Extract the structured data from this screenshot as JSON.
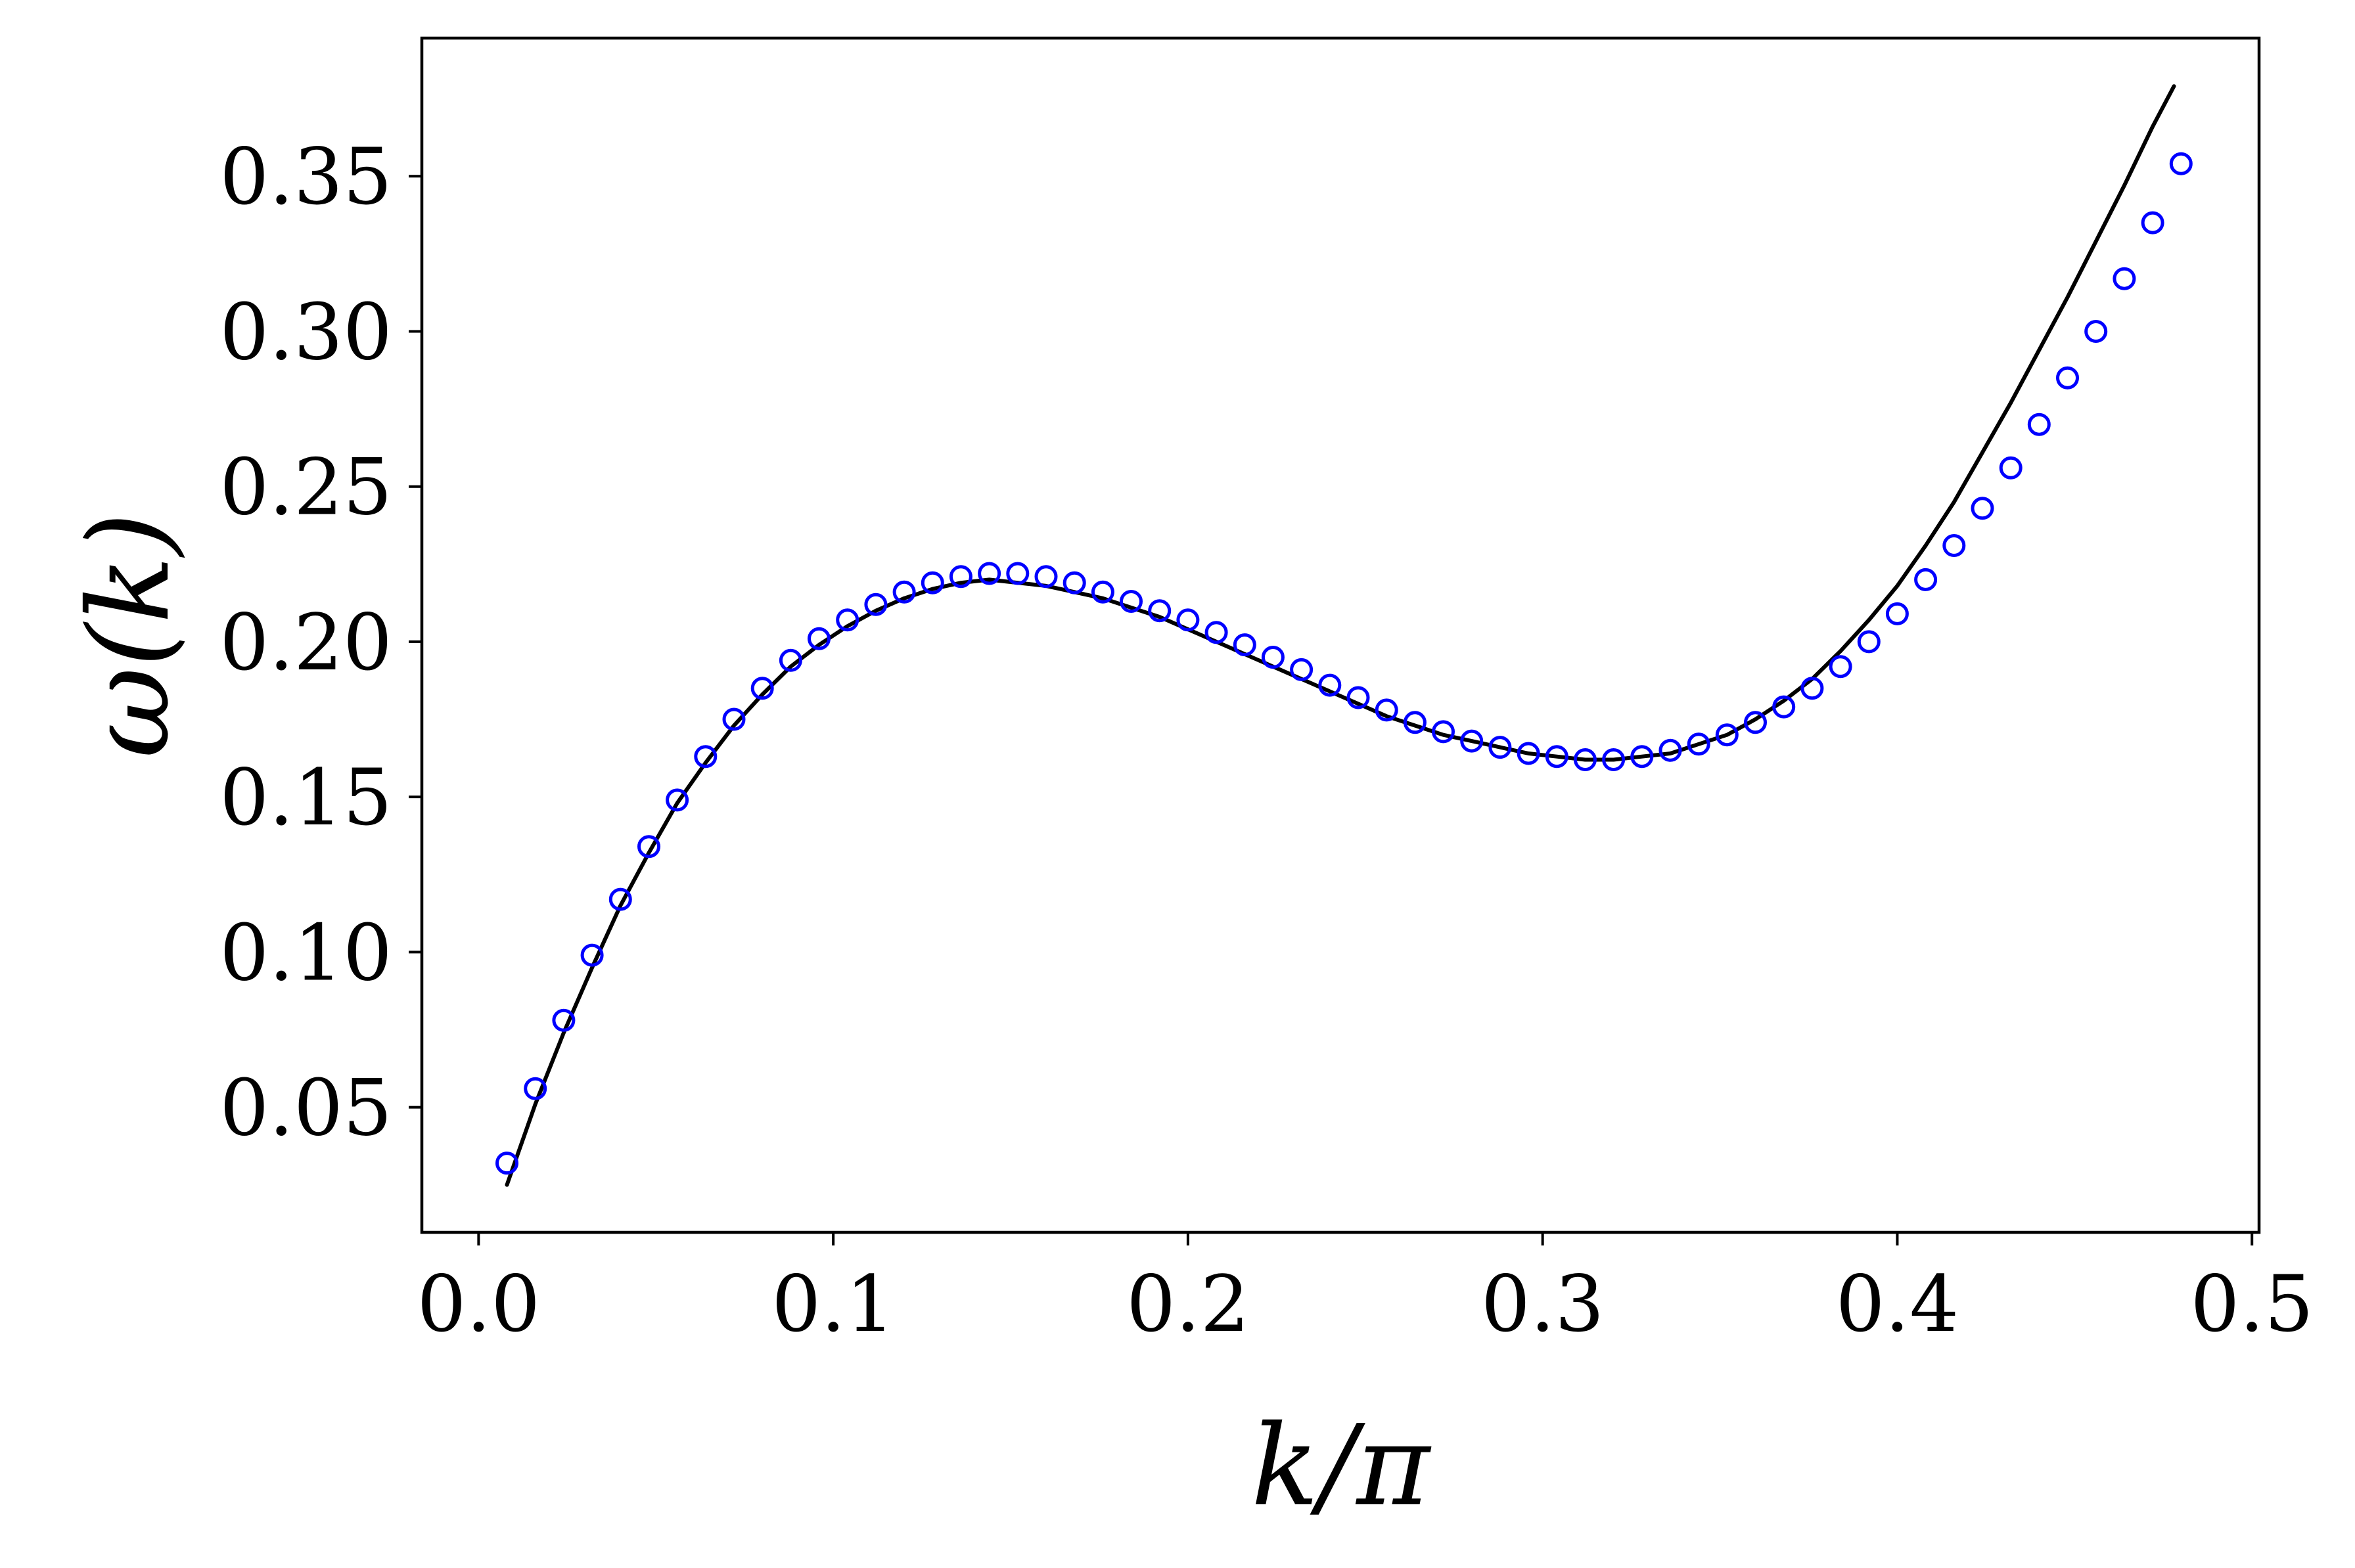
{
  "chart_data": {
    "type": "line",
    "title": "",
    "xlabel": "k/π",
    "ylabel": "ω(k)",
    "xlim": [
      -0.016,
      0.502
    ],
    "ylim": [
      0.0097,
      0.3945
    ],
    "x_ticks": [
      0.0,
      0.1,
      0.2,
      0.3,
      0.4,
      0.5
    ],
    "x_tick_labels": [
      "0.0",
      "0.1",
      "0.2",
      "0.3",
      "0.4",
      "0.5"
    ],
    "y_ticks": [
      0.05,
      0.1,
      0.15,
      0.2,
      0.25,
      0.3,
      0.35
    ],
    "y_tick_labels": [
      "0.05",
      "0.10",
      "0.15",
      "0.20",
      "0.25",
      "0.30",
      "0.35"
    ],
    "grid": false,
    "legend": "none",
    "series": [
      {
        "style": "line",
        "color": "#000000",
        "x": [
          0.008,
          0.016,
          0.024,
          0.032,
          0.04,
          0.048,
          0.056,
          0.064,
          0.072,
          0.08,
          0.088,
          0.096,
          0.104,
          0.112,
          0.12,
          0.128,
          0.136,
          0.144,
          0.152,
          0.16,
          0.168,
          0.176,
          0.184,
          0.192,
          0.2,
          0.208,
          0.216,
          0.224,
          0.232,
          0.24,
          0.248,
          0.256,
          0.264,
          0.272,
          0.28,
          0.288,
          0.296,
          0.304,
          0.312,
          0.32,
          0.328,
          0.336,
          0.344,
          0.352,
          0.36,
          0.368,
          0.376,
          0.384,
          0.392,
          0.4,
          0.408,
          0.416,
          0.424,
          0.432,
          0.44,
          0.448,
          0.456,
          0.464,
          0.472,
          0.478
        ],
        "y": [
          0.025,
          0.051,
          0.074,
          0.095,
          0.115,
          0.132,
          0.148,
          0.161,
          0.173,
          0.183,
          0.192,
          0.199,
          0.205,
          0.21,
          0.214,
          0.217,
          0.219,
          0.22,
          0.219,
          0.218,
          0.216,
          0.214,
          0.211,
          0.208,
          0.204,
          0.2,
          0.196,
          0.192,
          0.188,
          0.184,
          0.18,
          0.176,
          0.173,
          0.17,
          0.168,
          0.166,
          0.164,
          0.163,
          0.162,
          0.162,
          0.163,
          0.164,
          0.167,
          0.17,
          0.175,
          0.181,
          0.188,
          0.197,
          0.207,
          0.218,
          0.231,
          0.245,
          0.261,
          0.277,
          0.294,
          0.311,
          0.329,
          0.347,
          0.366,
          0.379
        ]
      },
      {
        "style": "markers",
        "marker": "open-circle",
        "color": "#0000ff",
        "x": [
          0.008,
          0.016,
          0.024,
          0.032,
          0.04,
          0.048,
          0.056,
          0.064,
          0.072,
          0.08,
          0.088,
          0.096,
          0.104,
          0.112,
          0.12,
          0.128,
          0.136,
          0.144,
          0.152,
          0.16,
          0.168,
          0.176,
          0.184,
          0.192,
          0.2,
          0.208,
          0.216,
          0.224,
          0.232,
          0.24,
          0.248,
          0.256,
          0.264,
          0.272,
          0.28,
          0.288,
          0.296,
          0.304,
          0.312,
          0.32,
          0.328,
          0.336,
          0.344,
          0.352,
          0.36,
          0.368,
          0.376,
          0.384,
          0.392,
          0.4,
          0.408,
          0.416,
          0.424,
          0.432,
          0.44,
          0.448,
          0.456,
          0.464,
          0.472,
          0.48
        ],
        "y": [
          0.032,
          0.056,
          0.078,
          0.099,
          0.117,
          0.134,
          0.149,
          0.163,
          0.175,
          0.185,
          0.194,
          0.201,
          0.207,
          0.212,
          0.216,
          0.219,
          0.221,
          0.222,
          0.222,
          0.221,
          0.219,
          0.216,
          0.213,
          0.21,
          0.207,
          0.203,
          0.199,
          0.195,
          0.191,
          0.186,
          0.182,
          0.178,
          0.174,
          0.171,
          0.168,
          0.166,
          0.164,
          0.163,
          0.162,
          0.162,
          0.163,
          0.165,
          0.167,
          0.17,
          0.174,
          0.179,
          0.185,
          0.192,
          0.2,
          0.209,
          0.22,
          0.231,
          0.243,
          0.256,
          0.27,
          0.285,
          0.3,
          0.317,
          0.335,
          0.354
        ]
      }
    ]
  }
}
